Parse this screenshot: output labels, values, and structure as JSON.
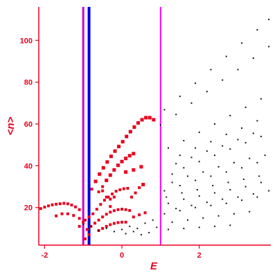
{
  "chart_data": {
    "type": "scatter",
    "xlabel": "E",
    "ylabel": "<n>",
    "xlim": [
      -2.15,
      3.85
    ],
    "ylim": [
      2,
      116
    ],
    "x_ticks": [
      "-2",
      "0",
      "2"
    ],
    "x_tick_values": [
      -2,
      0,
      2
    ],
    "y_ticks": [
      "20",
      "40",
      "60",
      "80",
      "100"
    ],
    "y_tick_values": [
      20,
      40,
      60,
      80,
      100
    ],
    "grid": false,
    "axis_color": "#e8001e",
    "vertical_lines": [
      {
        "x": -1.0,
        "color": "#cc00cc"
      },
      {
        "x": -0.85,
        "color": "#0000e0"
      },
      {
        "x": 1.0,
        "color": "#ff00ff"
      }
    ],
    "series": [
      {
        "color": "#e8001e",
        "marker": "square",
        "points": [
          [
            -2.1,
            19.5
          ],
          [
            -2.0,
            20.2
          ],
          [
            -1.9,
            20.8
          ],
          [
            -1.8,
            21.3
          ],
          [
            -1.7,
            21.6
          ],
          [
            -1.6,
            21.8
          ],
          [
            -1.5,
            22.0
          ],
          [
            -1.4,
            21.8
          ],
          [
            -1.3,
            21.2
          ],
          [
            -1.2,
            20.3
          ],
          [
            -1.1,
            19.0
          ],
          [
            -0.78,
            28.8
          ],
          [
            -0.68,
            32.5
          ],
          [
            -0.58,
            36.0
          ],
          [
            -0.48,
            39.0
          ],
          [
            -0.38,
            41.8
          ],
          [
            -0.28,
            44.5
          ],
          [
            -0.18,
            47.0
          ],
          [
            -0.08,
            49.2
          ],
          [
            0.02,
            51.5
          ],
          [
            0.12,
            54.0
          ],
          [
            0.22,
            56.3
          ],
          [
            0.32,
            58.5
          ],
          [
            0.42,
            60.5
          ],
          [
            0.52,
            62.0
          ],
          [
            0.62,
            63.0
          ],
          [
            0.72,
            63.0
          ],
          [
            0.82,
            62.0
          ],
          [
            -0.6,
            27.5
          ],
          [
            -0.5,
            30.0
          ],
          [
            -0.4,
            33.0
          ],
          [
            -0.3,
            35.5
          ],
          [
            -0.2,
            38.0
          ],
          [
            -0.1,
            40.2
          ],
          [
            0.0,
            42.0
          ],
          [
            0.1,
            43.5
          ],
          [
            0.2,
            44.8
          ],
          [
            0.3,
            45.8
          ],
          [
            -0.95,
            14.0
          ],
          [
            -0.85,
            15.5
          ],
          [
            -0.75,
            17.0
          ],
          [
            -0.65,
            19.2
          ],
          [
            -0.55,
            21.5
          ],
          [
            -0.45,
            23.5
          ],
          [
            -0.35,
            25.0
          ],
          [
            -0.25,
            26.5
          ],
          [
            -0.15,
            27.8
          ],
          [
            -0.05,
            28.5
          ],
          [
            0.05,
            29.0
          ],
          [
            0.15,
            29.2
          ],
          [
            -0.9,
            9.5
          ],
          [
            -0.8,
            11.0
          ],
          [
            -0.7,
            12.5
          ],
          [
            -0.6,
            14.0
          ],
          [
            -0.5,
            15.5
          ],
          [
            -0.4,
            16.8
          ],
          [
            -0.3,
            17.8
          ],
          [
            -0.2,
            18.5
          ],
          [
            -0.1,
            19.0
          ],
          [
            0.0,
            19.2
          ],
          [
            0.1,
            19.0
          ],
          [
            0.2,
            18.6
          ],
          [
            -0.6,
            9.0
          ],
          [
            -0.5,
            10.0
          ],
          [
            -0.4,
            11.0
          ],
          [
            -0.3,
            11.8
          ],
          [
            -0.2,
            12.4
          ],
          [
            -0.1,
            12.8
          ],
          [
            0.0,
            13.0
          ],
          [
            0.1,
            13.0
          ],
          [
            -1.7,
            16.0
          ],
          [
            -1.55,
            17.0
          ],
          [
            -1.4,
            17.0
          ],
          [
            -1.25,
            16.2
          ],
          [
            -1.1,
            14.8
          ],
          [
            -1.0,
            13.0
          ],
          [
            -0.3,
            24.0
          ],
          [
            -0.2,
            25.0
          ],
          [
            0.1,
            37.0
          ],
          [
            0.3,
            38.0
          ],
          [
            0.5,
            39.5
          ],
          [
            0.25,
            25.0
          ],
          [
            0.35,
            27.0
          ],
          [
            0.45,
            29.5
          ],
          [
            0.55,
            31.0
          ],
          [
            -0.5,
            28.0
          ],
          [
            -0.4,
            25.0
          ],
          [
            -0.3,
            20.5
          ],
          [
            0.3,
            15.5
          ],
          [
            0.45,
            16.5
          ],
          [
            0.6,
            17.5
          ],
          [
            -0.95,
            5.0
          ],
          [
            -1.1,
            11.0
          ],
          [
            -0.85,
            7.0
          ]
        ]
      },
      {
        "color": "#111111",
        "marker": "dot",
        "points": [
          [
            1.1,
            66.8
          ],
          [
            1.5,
            73.2
          ],
          [
            1.9,
            79.5
          ],
          [
            2.3,
            86.0
          ],
          [
            2.7,
            92.3
          ],
          [
            3.1,
            98.7
          ],
          [
            3.5,
            105.0
          ],
          [
            3.8,
            110.0
          ],
          [
            1.0,
            59.5
          ],
          [
            1.4,
            64.5
          ],
          [
            1.8,
            70.0
          ],
          [
            2.2,
            75.5
          ],
          [
            2.6,
            81.0
          ],
          [
            3.0,
            86.0
          ],
          [
            3.4,
            91.5
          ],
          [
            3.8,
            97.0
          ],
          [
            1.2,
            48.5
          ],
          [
            1.6,
            52.0
          ],
          [
            2.0,
            56.0
          ],
          [
            2.4,
            60.0
          ],
          [
            2.8,
            64.0
          ],
          [
            3.2,
            68.0
          ],
          [
            3.6,
            72.0
          ],
          [
            1.3,
            36.0
          ],
          [
            1.6,
            39.0
          ],
          [
            2.0,
            42.0
          ],
          [
            2.4,
            45.0
          ],
          [
            2.8,
            48.0
          ],
          [
            3.2,
            51.0
          ],
          [
            3.6,
            54.0
          ],
          [
            1.1,
            28.0
          ],
          [
            1.5,
            30.5
          ],
          [
            1.9,
            33.0
          ],
          [
            2.3,
            35.0
          ],
          [
            2.7,
            37.0
          ],
          [
            3.1,
            39.0
          ],
          [
            3.5,
            41.5
          ],
          [
            1.2,
            22.0
          ],
          [
            1.6,
            24.0
          ],
          [
            2.0,
            25.5
          ],
          [
            2.4,
            27.0
          ],
          [
            2.8,
            28.5
          ],
          [
            3.2,
            30.0
          ],
          [
            3.6,
            32.0
          ],
          [
            1.1,
            17.0
          ],
          [
            1.5,
            18.5
          ],
          [
            1.9,
            20.0
          ],
          [
            2.3,
            21.0
          ],
          [
            2.7,
            22.0
          ],
          [
            3.1,
            23.5
          ],
          [
            3.5,
            25.0
          ],
          [
            1.3,
            13.0
          ],
          [
            1.7,
            14.0
          ],
          [
            2.1,
            15.0
          ],
          [
            2.5,
            16.0
          ],
          [
            2.9,
            17.0
          ],
          [
            3.3,
            18.0
          ],
          [
            1.2,
            9.5
          ],
          [
            1.6,
            10.0
          ],
          [
            2.0,
            10.5
          ],
          [
            2.4,
            11.0
          ],
          [
            2.8,
            11.5
          ],
          [
            -1.0,
            12.0
          ],
          [
            -0.8,
            11.0
          ],
          [
            -0.6,
            9.0
          ],
          [
            -0.4,
            10.0
          ],
          [
            -0.2,
            8.5
          ],
          [
            0.0,
            9.5
          ],
          [
            0.2,
            11.0
          ],
          [
            0.4,
            10.0
          ],
          [
            0.6,
            12.5
          ],
          [
            0.8,
            14.0
          ],
          [
            0.9,
            10.5
          ],
          [
            0.7,
            8.0
          ],
          [
            0.5,
            7.0
          ],
          [
            0.3,
            8.5
          ],
          [
            0.1,
            7.5
          ],
          [
            1.5,
            45.0
          ],
          [
            1.9,
            48.5
          ],
          [
            2.3,
            51.5
          ],
          [
            2.7,
            55.0
          ],
          [
            3.1,
            58.0
          ],
          [
            3.5,
            61.5
          ],
          [
            1.4,
            41.0
          ],
          [
            1.8,
            44.0
          ],
          [
            2.2,
            47.0
          ],
          [
            2.6,
            49.5
          ],
          [
            3.0,
            52.5
          ],
          [
            3.4,
            55.5
          ],
          [
            1.3,
            32.0
          ],
          [
            1.7,
            35.0
          ],
          [
            2.1,
            37.0
          ],
          [
            2.5,
            39.5
          ],
          [
            2.9,
            41.5
          ],
          [
            3.3,
            43.5
          ],
          [
            3.7,
            45.0
          ],
          [
            1.15,
            25.0
          ],
          [
            1.55,
            27.0
          ],
          [
            1.95,
            28.5
          ],
          [
            2.35,
            30.5
          ],
          [
            2.75,
            32.0
          ],
          [
            3.15,
            33.5
          ],
          [
            3.55,
            35.0
          ],
          [
            1.4,
            19.5
          ],
          [
            1.8,
            21.0
          ],
          [
            2.2,
            22.5
          ],
          [
            2.6,
            24.0
          ],
          [
            3.0,
            25.0
          ],
          [
            3.4,
            26.5
          ],
          [
            3.8,
            28.0
          ]
        ]
      }
    ]
  }
}
